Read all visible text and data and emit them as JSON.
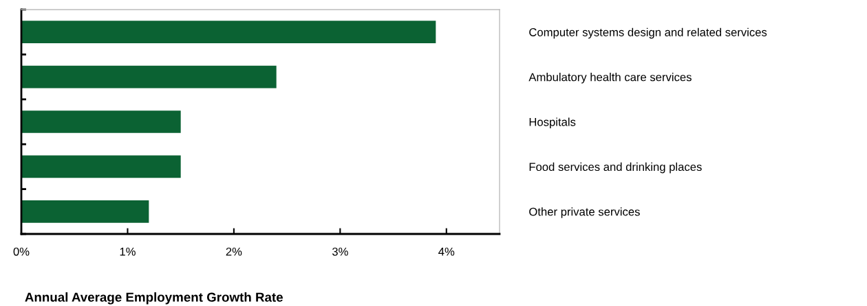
{
  "chart_data": {
    "type": "bar",
    "orientation": "horizontal",
    "xlabel": "Annual Average Employment Growth Rate",
    "categories": [
      "Computer systems design and related services",
      "Ambulatory health care services",
      "Hospitals",
      "Food services and drinking places",
      "Other private services"
    ],
    "values": [
      3.9,
      2.4,
      1.5,
      1.5,
      1.2
    ],
    "color": "#0b6233",
    "xlim": [
      0,
      4.5
    ],
    "xticks": [
      {
        "value": 0,
        "label": "0%"
      },
      {
        "value": 1,
        "label": "1%"
      },
      {
        "value": 2,
        "label": "2%"
      },
      {
        "value": 3,
        "label": "3%"
      },
      {
        "value": 4,
        "label": "4%"
      }
    ],
    "grid": false
  }
}
